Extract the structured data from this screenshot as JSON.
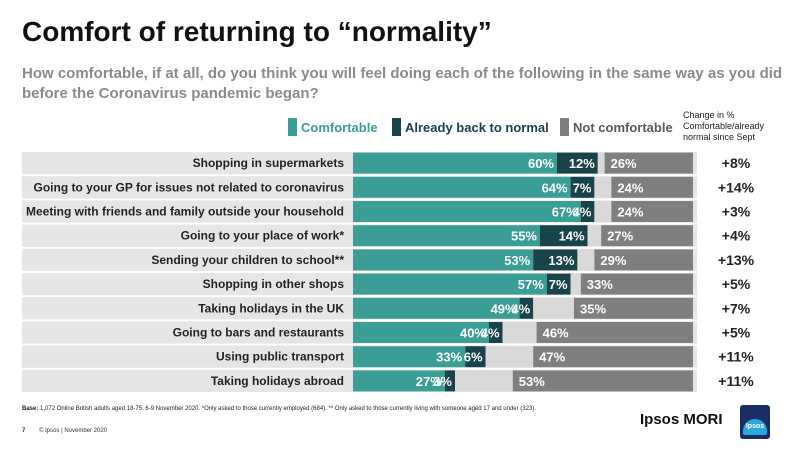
{
  "title": "Comfort of returning to “normality”",
  "subtitle": "How comfortable, if at all, do you think you will feel doing each of the following in the same way as you did before the Coronavirus pandemic began?",
  "legend": {
    "comfortable": "Comfortable",
    "already_back": "Already back to normal",
    "not_comfortable": "Not comfortable"
  },
  "change_header": "Change in % Comfortable/already normal since Sept",
  "colors": {
    "comfortable": "#3a9e96",
    "already_back": "#19434a",
    "not_comfortable": "#7f7f7f",
    "gap": "#d9d9d9",
    "row_band": "#e6e6e6"
  },
  "chart_data": {
    "type": "bar",
    "stacked": true,
    "orientation": "horizontal",
    "categories": [
      "Shopping in supermarkets",
      "Going to your GP for issues not related to coronavirus",
      "Meeting with friends and family outside your household",
      "Going to your place of work*",
      "Sending your children to school**",
      "Shopping in other shops",
      "Taking holidays in the UK",
      "Going to bars and restaurants",
      "Using public transport",
      "Taking holidays abroad"
    ],
    "series": [
      {
        "name": "Comfortable",
        "values": [
          60,
          64,
          67,
          55,
          53,
          57,
          49,
          40,
          33,
          27
        ]
      },
      {
        "name": "Already back to normal",
        "values": [
          12,
          7,
          4,
          14,
          13,
          7,
          4,
          4,
          6,
          3
        ]
      },
      {
        "name": "Not comfortable",
        "values": [
          26,
          24,
          24,
          27,
          29,
          33,
          35,
          46,
          47,
          53
        ]
      }
    ],
    "change_since_sept": [
      "+8%",
      "+14%",
      "+3%",
      "+4%",
      "+13%",
      "+5%",
      "+7%",
      "+5%",
      "+11%",
      "+11%"
    ]
  },
  "base_note": {
    "label": "Base:",
    "text": " 1,072 Online British adults aged 18-75, 6-9 November 2020. *Only asked to those currently employed (684). ** Only asked to those currently living with someone aged 17 and under (323)."
  },
  "footer": {
    "page": "7",
    "copyright": "© Ipsos | November 2020"
  },
  "brand": "Ipsos MORI",
  "logo_text": "Ipsos"
}
